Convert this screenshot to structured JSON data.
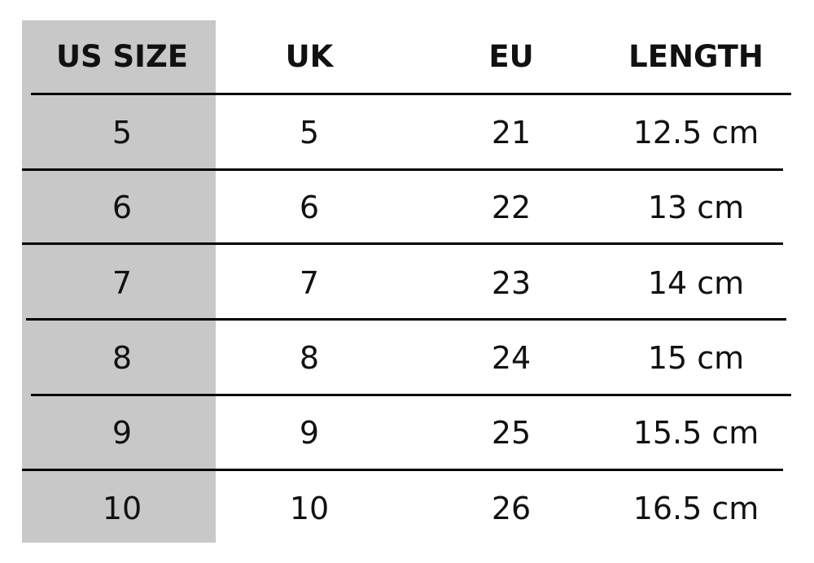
{
  "headers": [
    "US SIZE",
    "UK",
    "EU",
    "LENGTH"
  ],
  "rows": [
    [
      "5",
      "5",
      "21",
      "12.5 cm"
    ],
    [
      "6",
      "6",
      "22",
      "13 cm"
    ],
    [
      "7",
      "7",
      "23",
      "14 cm"
    ],
    [
      "8",
      "8",
      "24",
      "15 cm"
    ],
    [
      "9",
      "9",
      "25",
      "15.5 cm"
    ],
    [
      "10",
      "10",
      "26",
      "16.5 cm"
    ]
  ],
  "colors": {
    "highlight_column": "#c8c8c8",
    "rule": "#000000",
    "text": "#111111"
  }
}
